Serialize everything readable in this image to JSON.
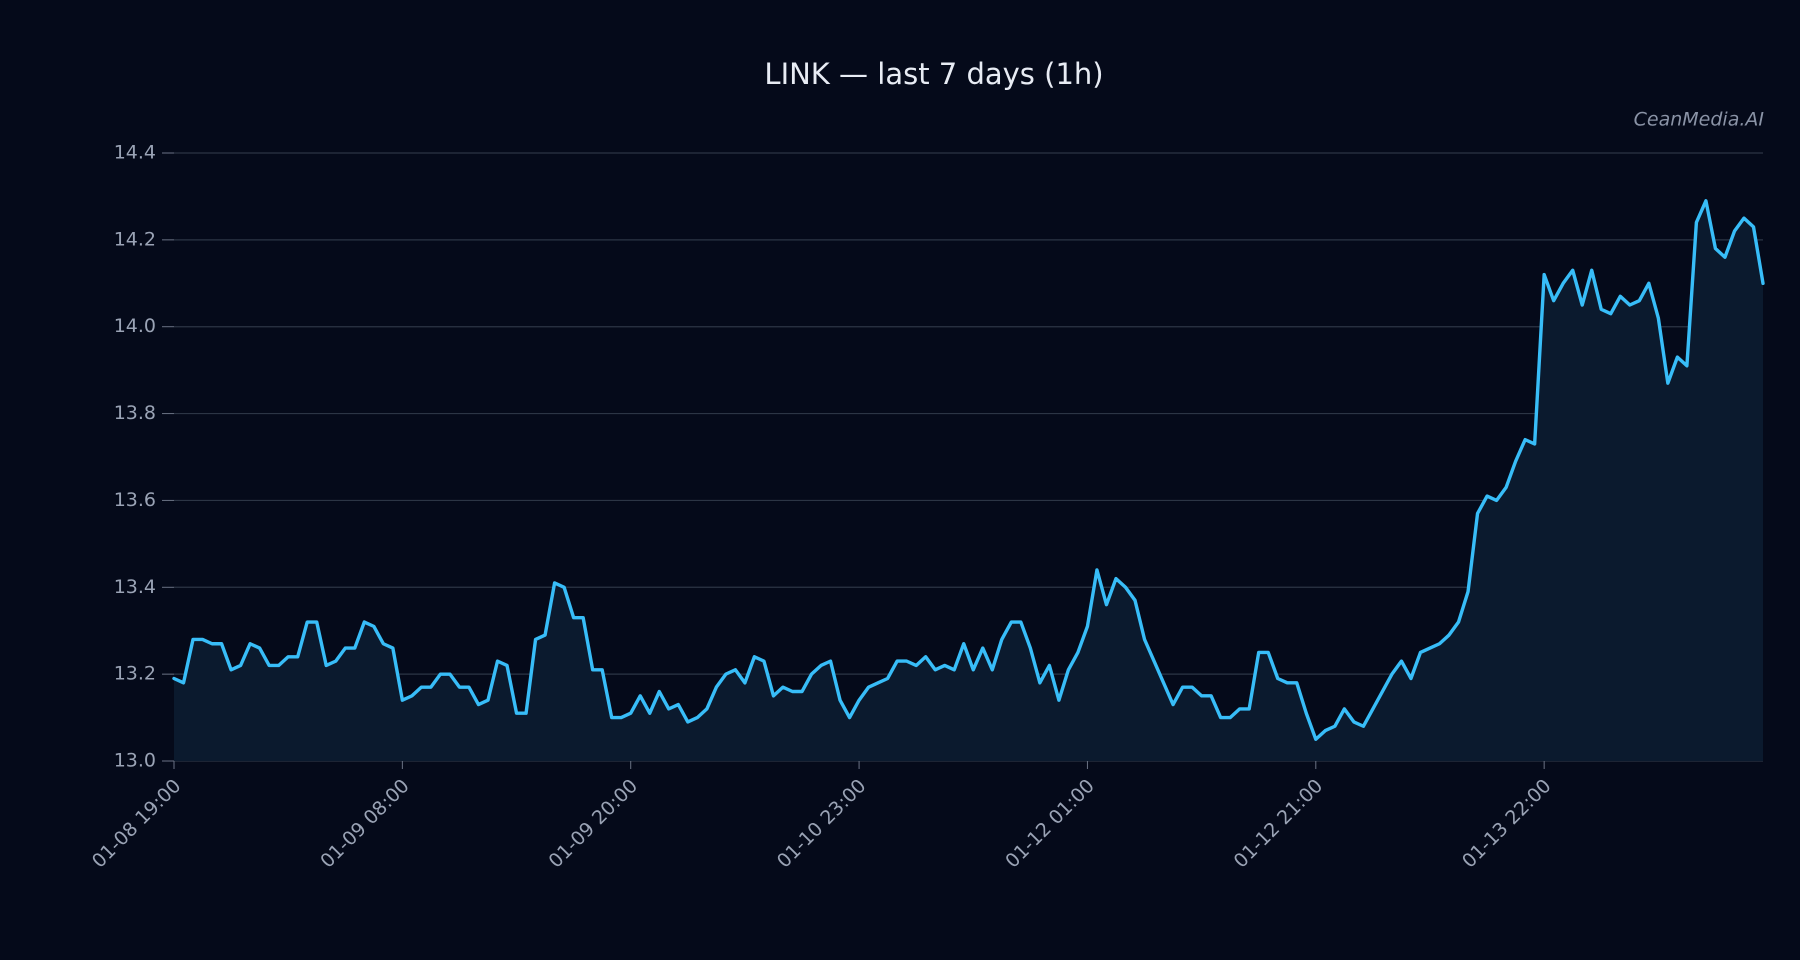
{
  "chart_data": {
    "type": "line",
    "title": "LINK — last 7 days (1h)",
    "watermark": "CeanMedia.AI",
    "categories": [
      "01-08 19:00",
      null,
      null,
      null,
      null,
      null,
      null,
      null,
      null,
      null,
      null,
      null,
      null,
      null,
      null,
      null,
      null,
      null,
      null,
      null,
      null,
      null,
      null,
      null,
      "01-09 08:00",
      null,
      null,
      null,
      null,
      null,
      null,
      null,
      null,
      null,
      null,
      null,
      null,
      null,
      null,
      null,
      null,
      null,
      null,
      null,
      null,
      null,
      null,
      null,
      "01-09 20:00",
      null,
      null,
      null,
      null,
      null,
      null,
      null,
      null,
      null,
      null,
      null,
      null,
      null,
      null,
      null,
      null,
      null,
      null,
      null,
      null,
      null,
      null,
      null,
      "01-10 23:00",
      null,
      null,
      null,
      null,
      null,
      null,
      null,
      null,
      null,
      null,
      null,
      null,
      null,
      null,
      null,
      null,
      null,
      null,
      null,
      null,
      null,
      null,
      null,
      "01-12 01:00",
      null,
      null,
      null,
      null,
      null,
      null,
      null,
      null,
      null,
      null,
      null,
      null,
      null,
      null,
      null,
      null,
      null,
      null,
      null,
      null,
      null,
      null,
      null,
      "01-12 21:00",
      null,
      null,
      null,
      null,
      null,
      null,
      null,
      null,
      null,
      null,
      null,
      null,
      null,
      null,
      null,
      null,
      null,
      null,
      null,
      null,
      null,
      null,
      null,
      "01-13 22:00",
      null,
      null,
      null,
      null,
      null,
      null,
      null,
      null,
      null,
      null,
      null,
      null,
      null,
      null,
      null,
      null,
      null,
      null,
      null,
      null,
      null,
      null,
      null
    ],
    "values": [
      13.19,
      13.18,
      13.28,
      13.28,
      13.27,
      13.27,
      13.21,
      13.22,
      13.27,
      13.26,
      13.22,
      13.22,
      13.24,
      13.24,
      13.32,
      13.32,
      13.22,
      13.23,
      13.26,
      13.26,
      13.32,
      13.31,
      13.27,
      13.26,
      13.14,
      13.15,
      13.17,
      13.17,
      13.2,
      13.2,
      13.17,
      13.17,
      13.13,
      13.14,
      13.23,
      13.22,
      13.11,
      13.11,
      13.28,
      13.29,
      13.41,
      13.4,
      13.33,
      13.33,
      13.21,
      13.21,
      13.1,
      13.1,
      13.11,
      13.15,
      13.11,
      13.16,
      13.12,
      13.13,
      13.09,
      13.1,
      13.12,
      13.17,
      13.2,
      13.21,
      13.18,
      13.24,
      13.23,
      13.15,
      13.17,
      13.16,
      13.16,
      13.2,
      13.22,
      13.23,
      13.14,
      13.1,
      13.14,
      13.17,
      13.18,
      13.19,
      13.23,
      13.23,
      13.22,
      13.24,
      13.21,
      13.22,
      13.21,
      13.27,
      13.21,
      13.26,
      13.21,
      13.28,
      13.32,
      13.32,
      13.26,
      13.18,
      13.22,
      13.14,
      13.21,
      13.25,
      13.31,
      13.44,
      13.36,
      13.42,
      13.4,
      13.37,
      13.28,
      13.23,
      13.18,
      13.13,
      13.17,
      13.17,
      13.15,
      13.15,
      13.1,
      13.1,
      13.12,
      13.12,
      13.25,
      13.25,
      13.19,
      13.18,
      13.18,
      13.11,
      13.05,
      13.07,
      13.08,
      13.12,
      13.09,
      13.08,
      13.12,
      13.16,
      13.2,
      13.23,
      13.19,
      13.25,
      13.26,
      13.27,
      13.29,
      13.32,
      13.39,
      13.57,
      13.61,
      13.6,
      13.63,
      13.69,
      13.74,
      13.73,
      14.12,
      14.06,
      14.1,
      14.13,
      14.05,
      14.13,
      14.04,
      14.03,
      14.07,
      14.05,
      14.06,
      14.1,
      14.02,
      13.87,
      13.93,
      13.91,
      14.24,
      14.29,
      14.18,
      14.16,
      14.22,
      14.25,
      14.23,
      14.1
    ],
    "color": "#38bdf8",
    "fill": "#0b1a2e",
    "ylim": [
      13.0,
      14.4
    ],
    "yticks": [
      {
        "value": 13.0,
        "label": "13.0"
      },
      13.2,
      13.4,
      13.6,
      13.8,
      {
        "value": 14.0,
        "label": "14.0"
      },
      14.2,
      14.4
    ],
    "grid": true
  }
}
